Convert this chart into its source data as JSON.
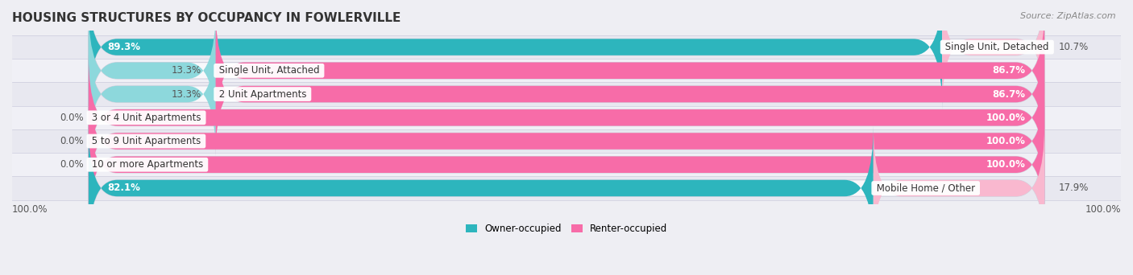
{
  "title": "HOUSING STRUCTURES BY OCCUPANCY IN FOWLERVILLE",
  "source": "Source: ZipAtlas.com",
  "categories": [
    "Single Unit, Detached",
    "Single Unit, Attached",
    "2 Unit Apartments",
    "3 or 4 Unit Apartments",
    "5 to 9 Unit Apartments",
    "10 or more Apartments",
    "Mobile Home / Other"
  ],
  "owner_pct": [
    89.3,
    13.3,
    13.3,
    0.0,
    0.0,
    0.0,
    82.1
  ],
  "renter_pct": [
    10.7,
    86.7,
    86.7,
    100.0,
    100.0,
    100.0,
    17.9
  ],
  "owner_color": "#2db5bd",
  "renter_color": "#f76ca8",
  "owner_color_light": "#8dd8dc",
  "renter_color_light": "#f9b8cf",
  "bg_color": "#eeeef3",
  "bar_bg": "#f8f8fb",
  "row_bg_odd": "#e8e8f0",
  "row_bg_even": "#f0f0f6",
  "title_fontsize": 11,
  "source_fontsize": 8,
  "label_fontsize": 8.5,
  "legend_fontsize": 8.5,
  "bar_height": 0.7,
  "note_100_left": "100.0%",
  "note_100_right": "100.0%"
}
